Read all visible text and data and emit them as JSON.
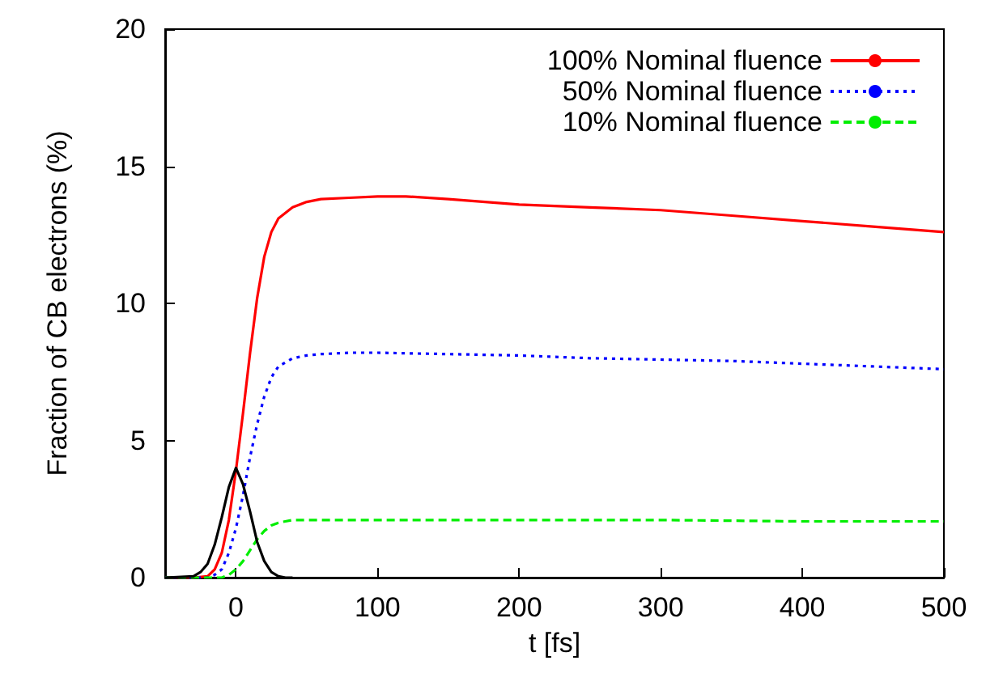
{
  "chart_data": {
    "type": "line",
    "xlabel": "t [fs]",
    "ylabel": "Fraction of CB electrons (%)",
    "xlim": [
      -50,
      500
    ],
    "xticks": [
      0,
      100,
      200,
      300,
      400,
      500
    ],
    "ylim": [
      0,
      20
    ],
    "yticks": [
      0,
      5,
      10,
      15,
      20
    ],
    "grid": false,
    "legend": "top right",
    "marker": "none",
    "series": [
      {
        "name": "100% Nominal fluence",
        "color": "#ff0000",
        "line_style": "solid",
        "x": [
          -50,
          -30,
          -20,
          -15,
          -10,
          -5,
          0,
          5,
          10,
          15,
          20,
          25,
          30,
          40,
          50,
          60,
          80,
          100,
          120,
          150,
          200,
          250,
          300,
          350,
          400,
          450,
          500
        ],
        "values": [
          0,
          0,
          0.05,
          0.3,
          0.9,
          2.1,
          3.9,
          6.0,
          8.2,
          10.2,
          11.7,
          12.6,
          13.1,
          13.5,
          13.7,
          13.8,
          13.85,
          13.9,
          13.9,
          13.8,
          13.6,
          13.5,
          13.4,
          13.2,
          13.0,
          12.8,
          12.6
        ]
      },
      {
        "name": "50% Nominal fluence",
        "color": "#0000ff",
        "line_style": "dotted",
        "x": [
          -50,
          -20,
          -15,
          -10,
          -5,
          0,
          5,
          10,
          15,
          20,
          25,
          30,
          40,
          50,
          60,
          80,
          100,
          150,
          200,
          250,
          300,
          350,
          400,
          450,
          500
        ],
        "values": [
          0,
          0,
          0.1,
          0.3,
          0.9,
          1.8,
          3.0,
          4.4,
          5.6,
          6.6,
          7.3,
          7.7,
          8.0,
          8.1,
          8.15,
          8.2,
          8.2,
          8.15,
          8.1,
          8.0,
          7.95,
          7.9,
          7.8,
          7.7,
          7.6
        ]
      },
      {
        "name": "10% Nominal fluence",
        "color": "#00ee00",
        "line_style": "dashed",
        "x": [
          -50,
          -10,
          -5,
          0,
          5,
          10,
          15,
          20,
          25,
          30,
          40,
          50,
          60,
          80,
          100,
          200,
          300,
          400,
          500
        ],
        "values": [
          0,
          0,
          0.1,
          0.3,
          0.6,
          1.0,
          1.4,
          1.7,
          1.9,
          2.0,
          2.1,
          2.1,
          2.1,
          2.1,
          2.1,
          2.1,
          2.1,
          2.05,
          2.05
        ]
      },
      {
        "color": "#000000",
        "line_style": "solid",
        "x": [
          -50,
          -30,
          -25,
          -20,
          -15,
          -10,
          -5,
          0,
          5,
          10,
          15,
          20,
          25,
          30,
          35,
          40
        ],
        "values": [
          0,
          0.05,
          0.2,
          0.5,
          1.2,
          2.2,
          3.3,
          4.0,
          3.4,
          2.4,
          1.3,
          0.6,
          0.2,
          0.05,
          0,
          0
        ]
      }
    ]
  }
}
